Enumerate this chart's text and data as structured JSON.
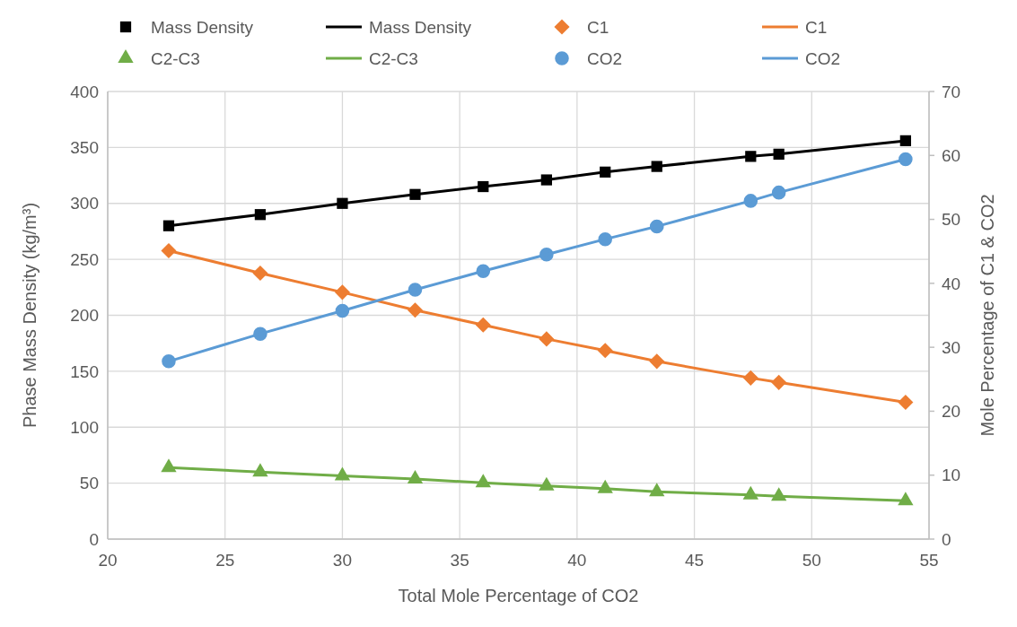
{
  "chart_data": {
    "type": "line",
    "xlabel": "Total Mole Percentage of CO2",
    "ylabel": "Phase Mass Density (kg/m³)",
    "y2label": "Mole Percentage of C1 & CO2",
    "x": [
      22.6,
      26.5,
      30.0,
      33.1,
      36.0,
      38.7,
      41.2,
      43.4,
      47.4,
      48.6,
      54.0
    ],
    "xlim": [
      20,
      55
    ],
    "xticks": [
      20,
      25,
      30,
      35,
      40,
      45,
      50,
      55
    ],
    "ylim": [
      0,
      400
    ],
    "yticks": [
      0,
      50,
      100,
      150,
      200,
      250,
      300,
      350,
      400
    ],
    "y2lim": [
      0,
      70
    ],
    "y2ticks": [
      0,
      10,
      20,
      30,
      40,
      50,
      60,
      70
    ],
    "grid": true,
    "legend": "top",
    "series": [
      {
        "name": "Mass Density",
        "type": "scatter",
        "marker": "square",
        "color": "#000000",
        "values": [
          280,
          290,
          300,
          308,
          315,
          321,
          328,
          333,
          342,
          344,
          356
        ]
      },
      {
        "name": "Mass Density",
        "marker": "none",
        "line_style": "solid",
        "color": "#000000",
        "values": [
          280,
          290,
          300,
          308,
          315,
          321,
          328,
          333,
          342,
          344,
          356
        ]
      },
      {
        "name": "C1",
        "type": "scatter",
        "marker": "diamond",
        "axis": "y2",
        "color": "#ed7d31",
        "values": [
          45.1,
          41.6,
          38.6,
          35.8,
          33.5,
          31.3,
          29.5,
          27.8,
          25.2,
          24.5,
          21.4
        ]
      },
      {
        "name": "C1",
        "marker": "none",
        "line_style": "solid",
        "axis": "y2",
        "color": "#ed7d31",
        "values": [
          45.1,
          41.6,
          38.6,
          35.8,
          33.5,
          31.3,
          29.5,
          27.8,
          25.2,
          24.5,
          21.4
        ]
      },
      {
        "name": "C2-C3",
        "type": "scatter",
        "marker": "triangle",
        "axis": "y2",
        "color": "#70ad47",
        "values": [
          11.2,
          10.5,
          9.9,
          9.4,
          8.8,
          8.3,
          7.9,
          7.4,
          6.9,
          6.7,
          6.0
        ]
      },
      {
        "name": "C2-C3",
        "marker": "none",
        "line_style": "solid",
        "axis": "y2",
        "color": "#70ad47",
        "values": [
          11.2,
          10.5,
          9.9,
          9.4,
          8.8,
          8.3,
          7.9,
          7.4,
          6.9,
          6.7,
          6.0
        ]
      },
      {
        "name": "CO2",
        "type": "scatter",
        "marker": "circle",
        "axis": "y2",
        "color": "#5b9bd5",
        "values": [
          27.8,
          32.1,
          35.7,
          39.0,
          41.9,
          44.5,
          46.9,
          48.9,
          52.9,
          54.2,
          59.4
        ]
      },
      {
        "name": "CO2",
        "marker": "none",
        "line_style": "solid",
        "axis": "y2",
        "color": "#5b9bd5",
        "values": [
          27.8,
          32.1,
          35.7,
          39.0,
          41.9,
          44.5,
          46.9,
          48.9,
          52.9,
          54.2,
          59.4
        ]
      }
    ]
  }
}
